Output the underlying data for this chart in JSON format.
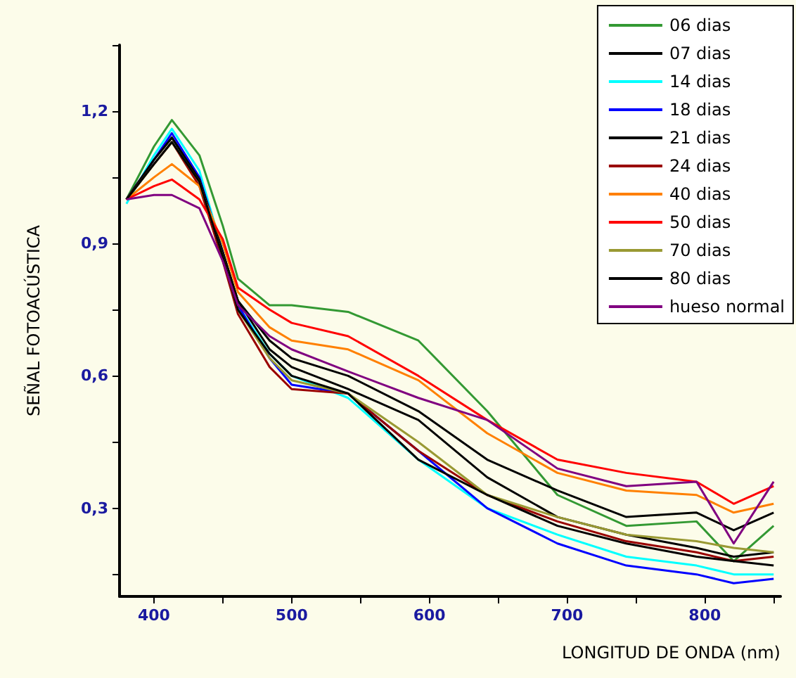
{
  "chart_data": {
    "type": "line",
    "xlabel": "LONGITUD DE ONDA (nm)",
    "ylabel": "SEÑAL FOTOACÚSTICA",
    "legend": "top right",
    "marker": "none",
    "x": [
      380,
      400,
      413,
      433,
      450,
      461,
      484,
      500,
      541,
      592,
      642,
      693,
      743,
      794,
      821,
      850
    ],
    "xlim": [
      375,
      855
    ],
    "xticks": [
      400,
      {
        "value": 450,
        "label": null
      },
      500,
      {
        "value": 550,
        "label": null
      },
      600,
      {
        "value": 650,
        "label": null
      },
      700,
      {
        "value": 750,
        "label": null
      },
      800,
      {
        "value": 850,
        "label": null
      }
    ],
    "ylim": [
      0.1,
      1.35
    ],
    "yticks": [
      {
        "value": 0.15,
        "label": null
      },
      {
        "value": 0.3,
        "label": "0,3"
      },
      {
        "value": 0.45,
        "label": null
      },
      {
        "value": 0.6,
        "label": "0,6"
      },
      {
        "value": 0.75,
        "label": null
      },
      {
        "value": 0.9,
        "label": "0,9"
      },
      {
        "value": 1.05,
        "label": null
      },
      {
        "value": 1.2,
        "label": "1,2"
      },
      {
        "value": 1.35,
        "label": null
      }
    ],
    "series": [
      {
        "name": "06 dias",
        "color": "#339933",
        "values": [
          1.0,
          1.12,
          1.18,
          1.1,
          0.94,
          0.82,
          0.76,
          0.76,
          0.745,
          0.68,
          0.52,
          0.33,
          0.26,
          0.27,
          0.18,
          0.26
        ]
      },
      {
        "name": "07 dias",
        "color": "#000000",
        "values": [
          1.0,
          1.09,
          1.14,
          1.045,
          0.88,
          0.77,
          0.68,
          0.64,
          0.6,
          0.52,
          0.41,
          0.34,
          0.28,
          0.29,
          0.25,
          0.29
        ]
      },
      {
        "name": "14 dias",
        "color": "#00ffff",
        "values": [
          0.99,
          1.1,
          1.16,
          1.065,
          0.88,
          0.76,
          0.65,
          0.6,
          0.55,
          0.41,
          0.3,
          0.24,
          0.19,
          0.17,
          0.15,
          0.15
        ]
      },
      {
        "name": "18 dias",
        "color": "#0000ff",
        "values": [
          1.0,
          1.09,
          1.15,
          1.05,
          0.88,
          0.76,
          0.64,
          0.58,
          0.56,
          0.43,
          0.3,
          0.22,
          0.17,
          0.15,
          0.13,
          0.14
        ]
      },
      {
        "name": "21 dias",
        "color": "#000000",
        "values": [
          1.0,
          1.09,
          1.14,
          1.045,
          0.88,
          0.77,
          0.66,
          0.62,
          0.57,
          0.5,
          0.37,
          0.28,
          0.24,
          0.21,
          0.19,
          0.2
        ]
      },
      {
        "name": "24 dias",
        "color": "#990000",
        "values": [
          1.0,
          1.08,
          1.13,
          1.03,
          0.86,
          0.74,
          0.62,
          0.57,
          0.56,
          0.43,
          0.33,
          0.27,
          0.225,
          0.2,
          0.18,
          0.19
        ]
      },
      {
        "name": "40 dias",
        "color": "#ff8000",
        "values": [
          1.0,
          1.05,
          1.08,
          1.03,
          0.9,
          0.79,
          0.71,
          0.68,
          0.66,
          0.59,
          0.47,
          0.38,
          0.34,
          0.33,
          0.29,
          0.31
        ]
      },
      {
        "name": "50 dias",
        "color": "#ff0000",
        "values": [
          1.0,
          1.03,
          1.045,
          1.0,
          0.91,
          0.8,
          0.75,
          0.72,
          0.69,
          0.6,
          0.5,
          0.41,
          0.38,
          0.36,
          0.31,
          0.35
        ]
      },
      {
        "name": "70 dias",
        "color": "#999933",
        "values": [
          1.0,
          1.08,
          1.13,
          1.04,
          0.87,
          0.75,
          0.64,
          0.59,
          0.56,
          0.45,
          0.33,
          0.28,
          0.24,
          0.225,
          0.21,
          0.2
        ]
      },
      {
        "name": "80 dias",
        "color": "#000000",
        "values": [
          1.0,
          1.08,
          1.13,
          1.04,
          0.87,
          0.75,
          0.65,
          0.6,
          0.56,
          0.41,
          0.33,
          0.26,
          0.22,
          0.19,
          0.18,
          0.17
        ]
      },
      {
        "name": "hueso normal",
        "color": "#800080",
        "values": [
          1.0,
          1.01,
          1.01,
          0.98,
          0.86,
          0.76,
          0.69,
          0.66,
          0.61,
          0.55,
          0.5,
          0.39,
          0.35,
          0.36,
          0.22,
          0.36
        ]
      }
    ]
  }
}
